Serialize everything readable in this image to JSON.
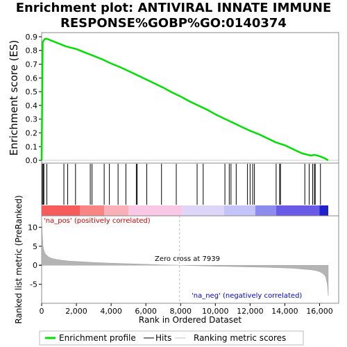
{
  "chart_data": {
    "title_line1": "Enrichment plot: ANTIVIRAL INNATE IMMUNE",
    "title_line2": "RESPONSE%GOBP%GO:0140374",
    "top_panel": {
      "type": "line",
      "ylabel": "Enrichment score (ES)",
      "ylim": [
        -0.02,
        0.93
      ],
      "yticks": [
        "0.0",
        "0.1",
        "0.2",
        "0.3",
        "0.4",
        "0.5",
        "0.6",
        "0.7",
        "0.8",
        "0.9"
      ],
      "line_color": "#00e000",
      "series": [
        {
          "x": [
            0,
            60,
            100,
            200,
            300,
            500,
            800,
            1100,
            1400,
            1700,
            2000,
            2500,
            3000,
            3500,
            4000,
            4500,
            5000,
            5500,
            6000,
            6500,
            7000,
            7500,
            8000,
            8500,
            9000,
            9500,
            10000,
            10500,
            11000,
            11500,
            12000,
            12500,
            13000,
            13500,
            14000,
            14500,
            15000,
            15500,
            15700,
            16000,
            16300,
            16500
          ],
          "y": [
            0.0,
            0.86,
            0.87,
            0.885,
            0.885,
            0.875,
            0.86,
            0.845,
            0.83,
            0.82,
            0.81,
            0.785,
            0.76,
            0.735,
            0.705,
            0.68,
            0.65,
            0.62,
            0.59,
            0.56,
            0.53,
            0.495,
            0.465,
            0.43,
            0.4,
            0.37,
            0.335,
            0.305,
            0.275,
            0.245,
            0.215,
            0.19,
            0.16,
            0.13,
            0.11,
            0.08,
            0.05,
            0.035,
            0.04,
            0.03,
            0.015,
            0.0
          ]
        }
      ]
    },
    "hits": [
      40,
      90,
      130,
      300,
      1280,
      1500,
      1950,
      2800,
      2900,
      3600,
      3900,
      4400,
      4850,
      5450,
      5500,
      6050,
      6900,
      7750,
      8950,
      9300,
      10550,
      10800,
      10900,
      11200,
      11850,
      12000,
      12150,
      12250,
      13500,
      13700,
      13750,
      15150,
      15400,
      15600,
      15700,
      15750,
      16050
    ],
    "bottom_panel": {
      "type": "area",
      "ylabel": "Ranked list metric (PreRanked)",
      "xlabel": "Rank in Ordered Dataset",
      "ylim": [
        -10,
        13
      ],
      "yticks": [
        "10",
        "5",
        "0",
        "-5"
      ],
      "xlim": [
        0,
        16500
      ],
      "xticks": [
        "0",
        "2,000",
        "4,000",
        "6,000",
        "8,000",
        "10,000",
        "12,000",
        "14,000",
        "16,000"
      ],
      "zero_cross": 7939,
      "metric_x": [
        0,
        30,
        80,
        150,
        250,
        400,
        600,
        900,
        1200,
        1600,
        2000,
        2600,
        3200,
        4000,
        5000,
        6000,
        7000,
        7939,
        9000,
        10000,
        11000,
        12000,
        13000,
        14000,
        14500,
        15000,
        15500,
        15800,
        16000,
        16200,
        16350,
        16450,
        16500
      ],
      "metric_y": [
        13,
        9.0,
        5.0,
        3.5,
        2.8,
        2.2,
        1.8,
        1.5,
        1.3,
        1.1,
        1.0,
        0.85,
        0.7,
        0.55,
        0.4,
        0.25,
        0.1,
        0.0,
        -0.15,
        -0.25,
        -0.35,
        -0.45,
        -0.55,
        -0.7,
        -0.8,
        -1.0,
        -1.2,
        -1.4,
        -1.7,
        -2.2,
        -3.0,
        -5.0,
        -8.0
      ],
      "annotations": {
        "pos": "'na_pos' (positively correlated)",
        "neg": "'na_neg' (negatively correlated)",
        "zero": "Zero cross at 7939"
      }
    },
    "legend": [
      "Enrichment profile",
      "Hits",
      "Ranking metric scores"
    ]
  }
}
